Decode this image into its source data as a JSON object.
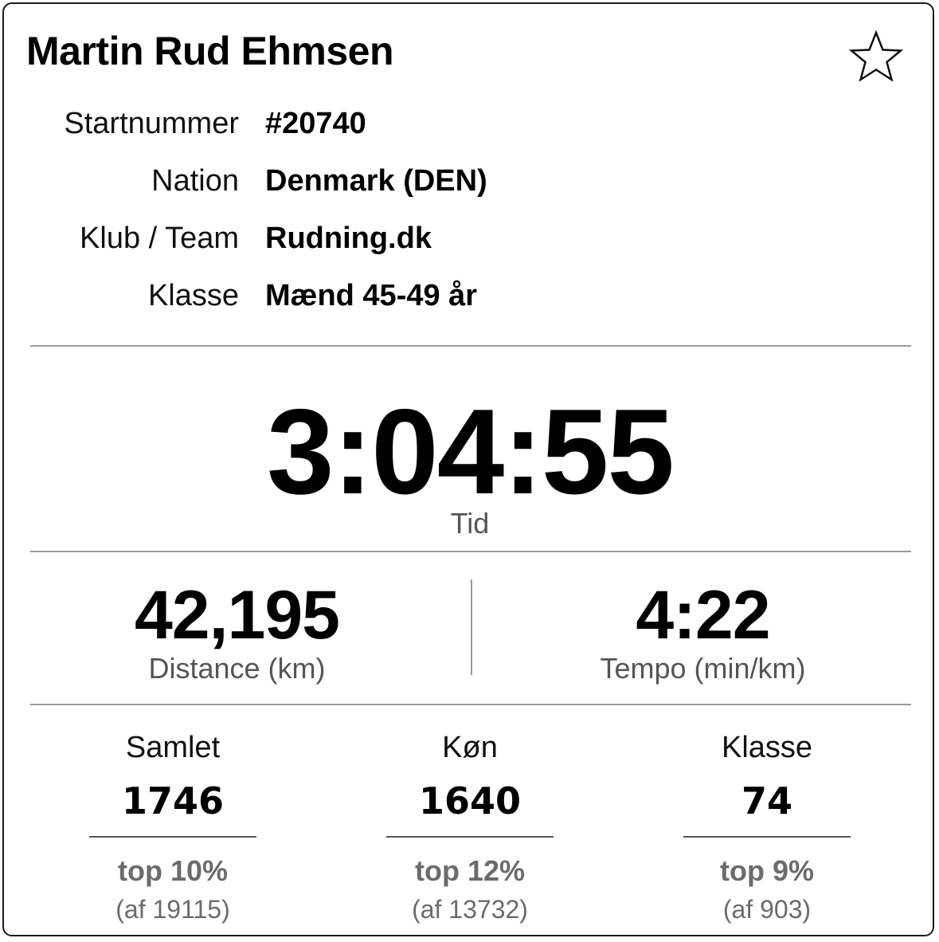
{
  "athlete": {
    "name": "Martin Rud Ehmsen",
    "favorite_icon": "star-outline-icon"
  },
  "info": [
    {
      "label": "Startnummer",
      "value": "#20740"
    },
    {
      "label": "Nation",
      "value": "Denmark (DEN)"
    },
    {
      "label": "Klub / Team",
      "value": "Rudning.dk"
    },
    {
      "label": "Klasse",
      "value": "Mænd 45-49 år"
    }
  ],
  "result": {
    "time": "3:04:55",
    "time_label": "Tid"
  },
  "stats": {
    "distance": {
      "value": "42,195",
      "label": "Distance (km)"
    },
    "tempo": {
      "value": "4:22",
      "label": "Tempo (min/km)"
    }
  },
  "rankings": [
    {
      "label": "Samlet",
      "place": "1746",
      "top": "top 10%",
      "of": "(af 19115)"
    },
    {
      "label": "Køn",
      "place": "1640",
      "top": "top 12%",
      "of": "(af 13732)"
    },
    {
      "label": "Klasse",
      "place": "74",
      "top": "top 9%",
      "of": "(af 903)"
    }
  ]
}
